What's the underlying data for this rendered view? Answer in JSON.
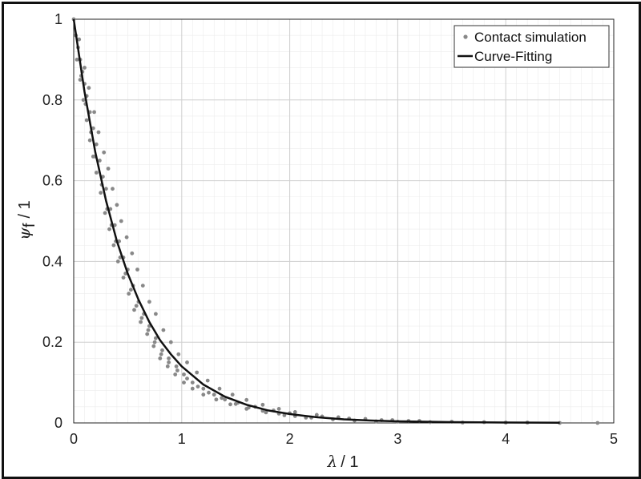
{
  "chart_data": {
    "type": "scatter",
    "title": "",
    "xlabel": {
      "symbol": "λ",
      "unit": "/ 1"
    },
    "ylabel": {
      "symbol": "ψ",
      "subscript": "f",
      "unit": "/ 1"
    },
    "xlim": [
      0,
      5
    ],
    "ylim": [
      0,
      1
    ],
    "xticks": [
      "0",
      "1",
      "2",
      "3",
      "4",
      "5"
    ],
    "yticks": [
      "0",
      "0.2",
      "0.4",
      "0.6",
      "0.8",
      "1"
    ],
    "grid": true,
    "minor_grid": true,
    "legend_position": "top-right",
    "series": [
      {
        "name": "Contact simulation",
        "kind": "scatter",
        "color": "#888888",
        "points": [
          [
            0.0,
            1.0
          ],
          [
            0.02,
            0.96
          ],
          [
            0.04,
            0.93
          ],
          [
            0.06,
            0.9
          ],
          [
            0.08,
            0.87
          ],
          [
            0.1,
            0.84
          ],
          [
            0.12,
            0.81
          ],
          [
            0.15,
            0.77
          ],
          [
            0.18,
            0.73
          ],
          [
            0.21,
            0.69
          ],
          [
            0.24,
            0.65
          ],
          [
            0.27,
            0.61
          ],
          [
            0.3,
            0.58
          ],
          [
            0.34,
            0.53
          ],
          [
            0.38,
            0.49
          ],
          [
            0.42,
            0.45
          ],
          [
            0.46,
            0.41
          ],
          [
            0.5,
            0.38
          ],
          [
            0.55,
            0.34
          ],
          [
            0.6,
            0.3
          ],
          [
            0.65,
            0.27
          ],
          [
            0.7,
            0.24
          ],
          [
            0.76,
            0.21
          ],
          [
            0.82,
            0.18
          ],
          [
            0.88,
            0.16
          ],
          [
            0.95,
            0.14
          ],
          [
            1.02,
            0.12
          ],
          [
            1.1,
            0.1
          ],
          [
            1.2,
            0.085
          ],
          [
            1.3,
            0.07
          ],
          [
            1.4,
            0.058
          ],
          [
            1.5,
            0.047
          ],
          [
            1.62,
            0.038
          ],
          [
            1.75,
            0.03
          ],
          [
            1.9,
            0.023
          ],
          [
            2.05,
            0.017
          ],
          [
            2.2,
            0.013
          ],
          [
            2.4,
            0.009
          ],
          [
            2.6,
            0.006
          ],
          [
            2.8,
            0.004
          ],
          [
            3.0,
            0.003
          ],
          [
            3.3,
            0.002
          ],
          [
            3.6,
            0.001
          ],
          [
            4.0,
            0.001
          ],
          [
            4.5,
            0.0
          ],
          [
            4.85,
            0.0
          ],
          [
            0.03,
            0.9
          ],
          [
            0.06,
            0.85
          ],
          [
            0.09,
            0.8
          ],
          [
            0.12,
            0.75
          ],
          [
            0.15,
            0.7
          ],
          [
            0.18,
            0.66
          ],
          [
            0.21,
            0.62
          ],
          [
            0.25,
            0.57
          ],
          [
            0.29,
            0.52
          ],
          [
            0.33,
            0.48
          ],
          [
            0.37,
            0.44
          ],
          [
            0.41,
            0.4
          ],
          [
            0.46,
            0.36
          ],
          [
            0.51,
            0.32
          ],
          [
            0.56,
            0.28
          ],
          [
            0.62,
            0.25
          ],
          [
            0.68,
            0.22
          ],
          [
            0.74,
            0.19
          ],
          [
            0.8,
            0.16
          ],
          [
            0.87,
            0.14
          ],
          [
            0.94,
            0.12
          ],
          [
            1.02,
            0.1
          ],
          [
            1.1,
            0.085
          ],
          [
            1.2,
            0.07
          ],
          [
            1.32,
            0.058
          ],
          [
            1.45,
            0.046
          ],
          [
            1.6,
            0.035
          ],
          [
            1.78,
            0.026
          ],
          [
            1.95,
            0.019
          ],
          [
            2.15,
            0.013
          ],
          [
            0.05,
            0.95
          ],
          [
            0.1,
            0.88
          ],
          [
            0.14,
            0.83
          ],
          [
            0.19,
            0.77
          ],
          [
            0.23,
            0.72
          ],
          [
            0.28,
            0.67
          ],
          [
            0.32,
            0.63
          ],
          [
            0.36,
            0.58
          ],
          [
            0.4,
            0.54
          ],
          [
            0.44,
            0.5
          ],
          [
            0.49,
            0.46
          ],
          [
            0.54,
            0.42
          ],
          [
            0.59,
            0.38
          ],
          [
            0.64,
            0.34
          ],
          [
            0.7,
            0.3
          ],
          [
            0.76,
            0.27
          ],
          [
            0.83,
            0.23
          ],
          [
            0.9,
            0.2
          ],
          [
            0.97,
            0.17
          ],
          [
            1.05,
            0.15
          ],
          [
            1.14,
            0.125
          ],
          [
            1.24,
            0.105
          ],
          [
            1.35,
            0.085
          ],
          [
            1.47,
            0.07
          ],
          [
            1.6,
            0.057
          ],
          [
            1.75,
            0.045
          ],
          [
            1.9,
            0.035
          ],
          [
            2.05,
            0.027
          ],
          [
            2.25,
            0.02
          ],
          [
            2.45,
            0.014
          ],
          [
            2.7,
            0.01
          ],
          [
            2.95,
            0.007
          ],
          [
            3.2,
            0.005
          ],
          [
            3.5,
            0.003
          ],
          [
            3.8,
            0.002
          ],
          [
            4.2,
            0.001
          ],
          [
            0.07,
            0.86
          ],
          [
            0.11,
            0.79
          ],
          [
            0.16,
            0.72
          ],
          [
            0.2,
            0.66
          ],
          [
            0.26,
            0.59
          ],
          [
            0.31,
            0.53
          ],
          [
            0.35,
            0.49
          ],
          [
            0.39,
            0.45
          ],
          [
            0.43,
            0.41
          ],
          [
            0.48,
            0.37
          ],
          [
            0.53,
            0.33
          ],
          [
            0.58,
            0.29
          ],
          [
            0.63,
            0.26
          ],
          [
            0.69,
            0.23
          ],
          [
            0.75,
            0.2
          ],
          [
            0.81,
            0.17
          ],
          [
            0.88,
            0.15
          ],
          [
            0.96,
            0.13
          ],
          [
            1.05,
            0.11
          ],
          [
            1.15,
            0.09
          ],
          [
            1.25,
            0.075
          ],
          [
            1.37,
            0.062
          ],
          [
            1.52,
            0.05
          ],
          [
            1.68,
            0.04
          ],
          [
            1.85,
            0.031
          ],
          [
            2.0,
            0.024
          ],
          [
            2.3,
            0.016
          ],
          [
            2.55,
            0.011
          ],
          [
            2.85,
            0.007
          ],
          [
            3.1,
            0.005
          ]
        ]
      },
      {
        "name": "Curve-Fitting",
        "kind": "line",
        "color": "#111111",
        "x": [
          0.0,
          0.1,
          0.2,
          0.3,
          0.4,
          0.5,
          0.6,
          0.7,
          0.8,
          0.9,
          1.0,
          1.2,
          1.4,
          1.6,
          1.8,
          2.0,
          2.25,
          2.5,
          2.75,
          3.0,
          3.5,
          4.0,
          4.5
        ],
        "y": [
          1.0,
          0.82,
          0.67,
          0.55,
          0.45,
          0.37,
          0.305,
          0.25,
          0.205,
          0.17,
          0.14,
          0.095,
          0.065,
          0.045,
          0.031,
          0.022,
          0.014,
          0.009,
          0.006,
          0.004,
          0.002,
          0.001,
          0.0005
        ]
      }
    ]
  }
}
